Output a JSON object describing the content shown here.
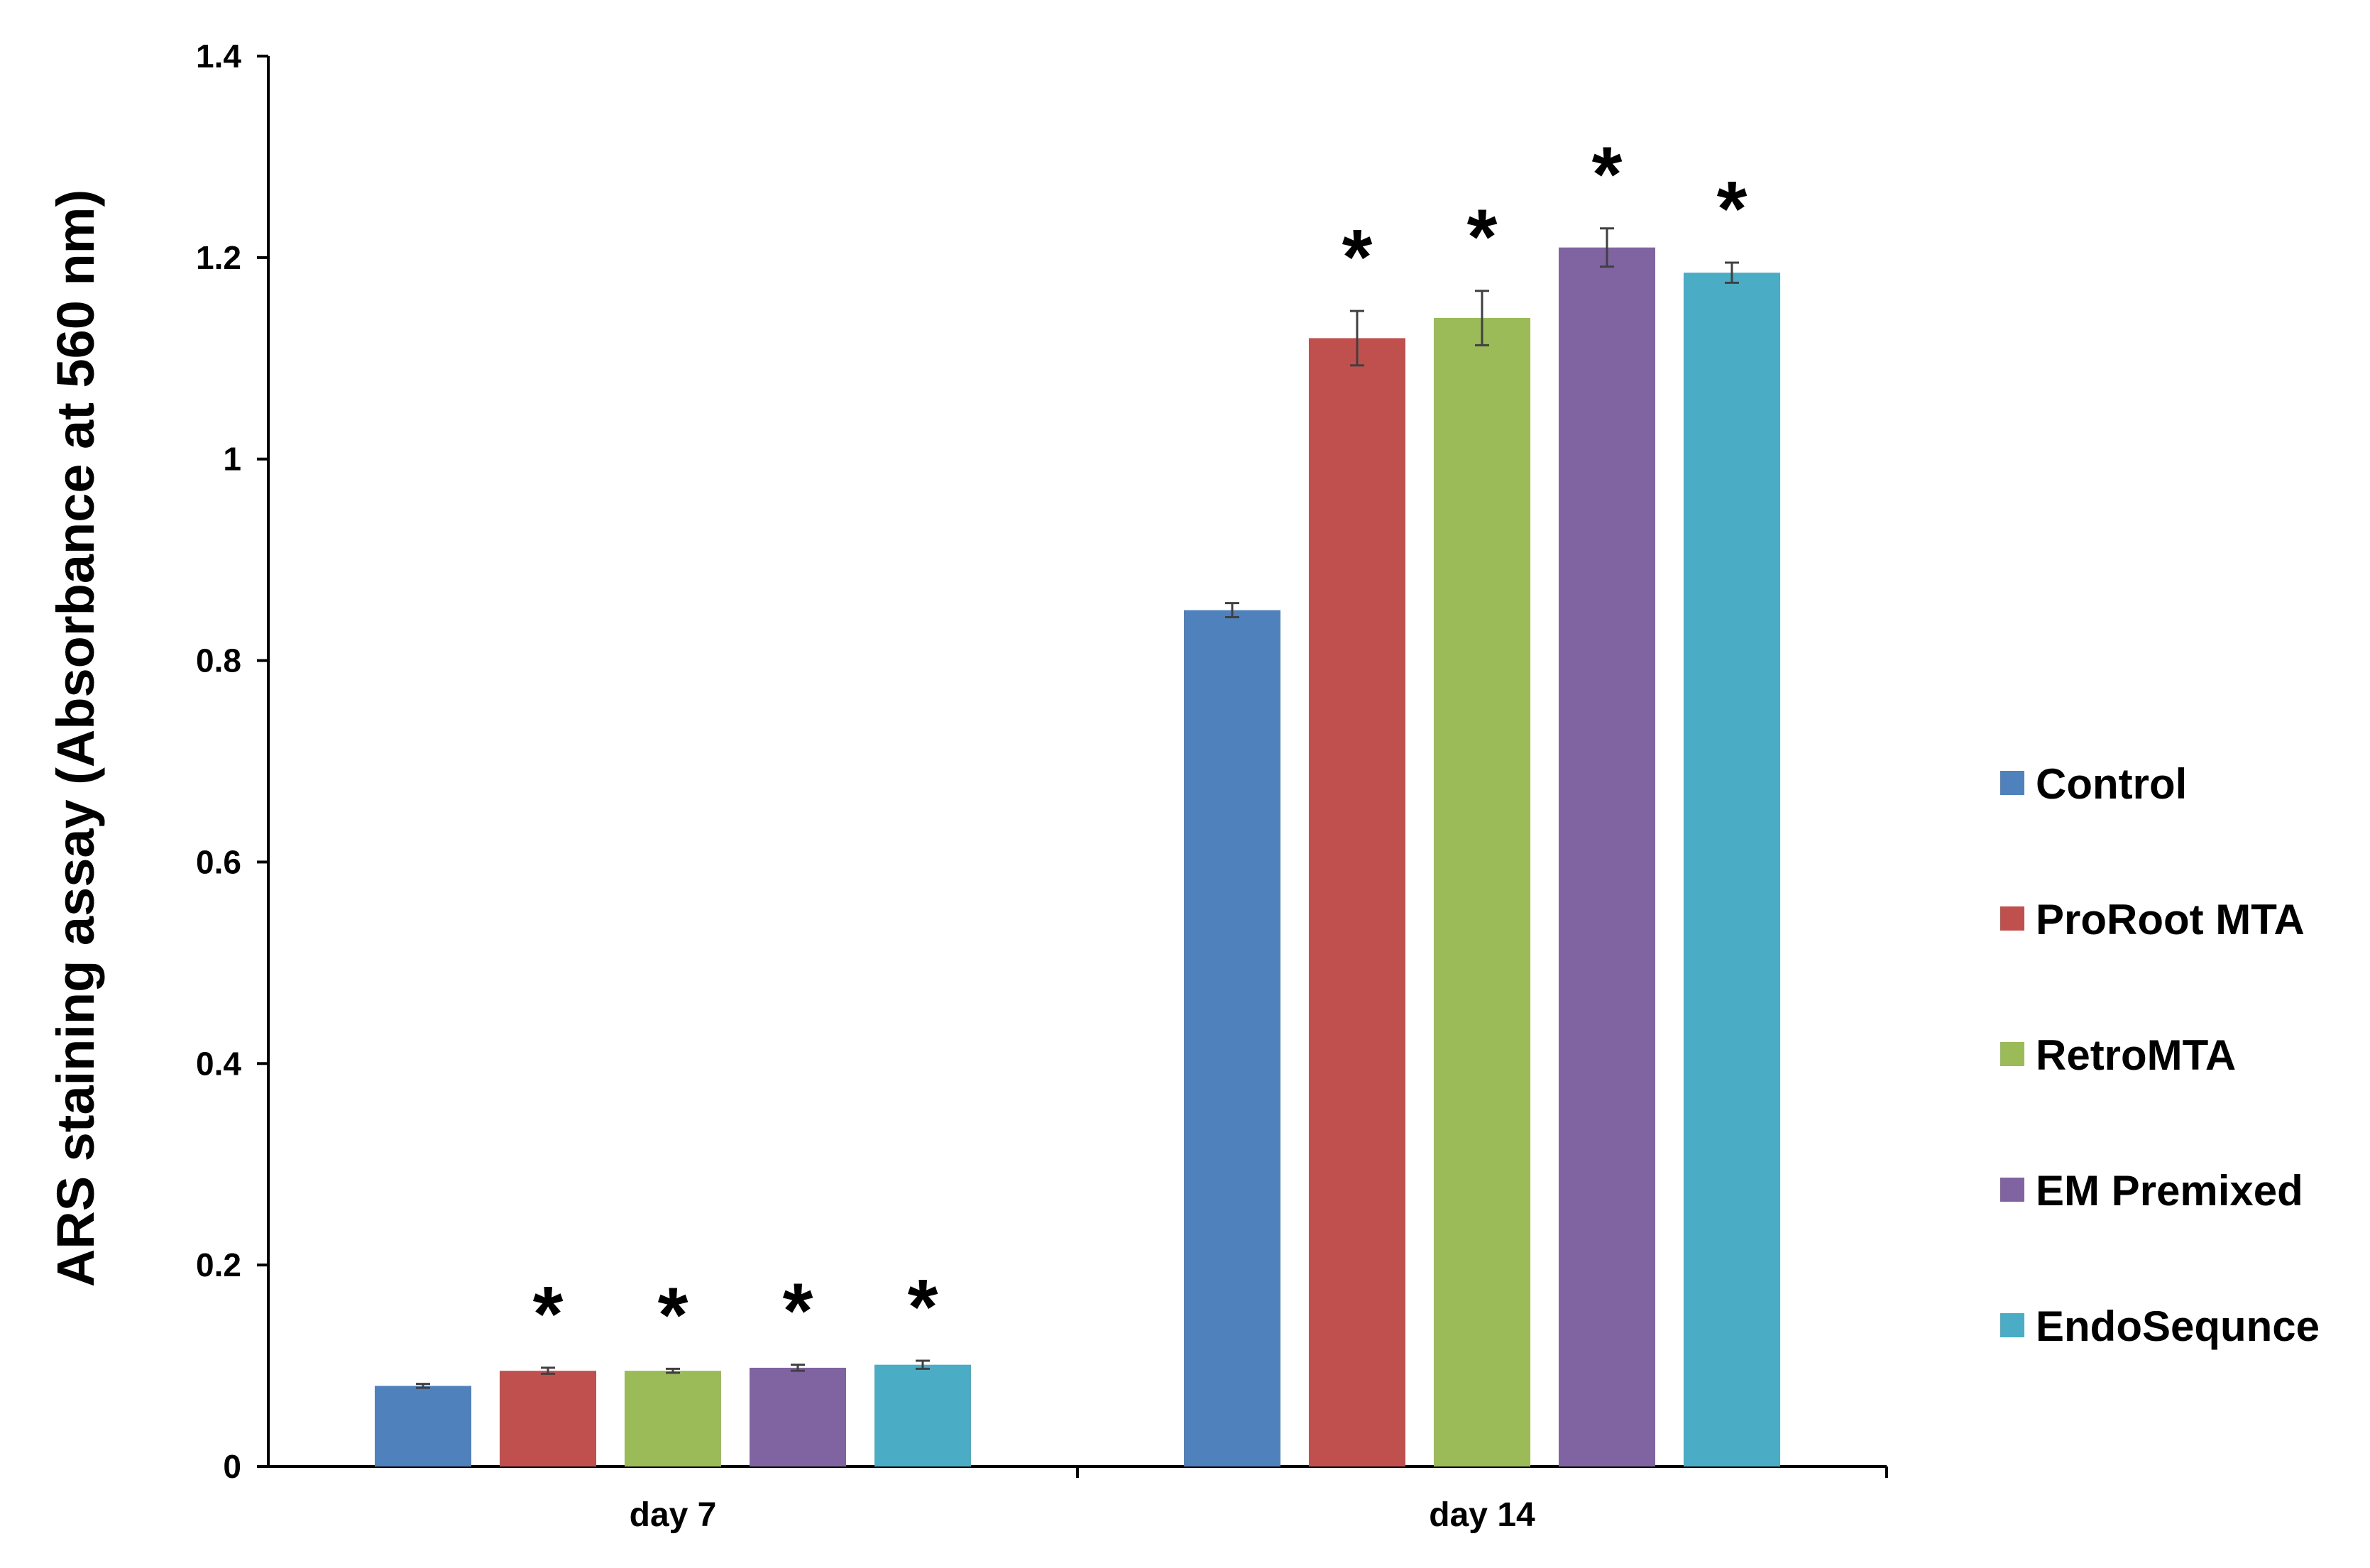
{
  "chart_data": {
    "type": "bar",
    "title": "",
    "xlabel": "",
    "ylabel": "ARS staining assay (Absorbance at 560 nm)",
    "ylim": [
      0,
      1.4
    ],
    "yticks": [
      0,
      0.2,
      0.4,
      0.6,
      0.8,
      1,
      1.2,
      1.4
    ],
    "ytick_labels": [
      "0",
      "0.2",
      "0.4",
      "0.6",
      "0.8",
      "1",
      "1.2",
      "1.4"
    ],
    "categories": [
      "day 7",
      "day 14"
    ],
    "grid": false,
    "legend_position": "right",
    "significance_marker": "*",
    "series": [
      {
        "name": "Control",
        "color": "#4F81BD",
        "values": [
          0.08,
          0.85
        ],
        "errors": [
          0.002,
          0.007
        ],
        "significant": [
          false,
          false
        ]
      },
      {
        "name": "ProRoot MTA",
        "color": "#C0504D",
        "values": [
          0.095,
          1.12
        ],
        "errors": [
          0.003,
          0.027
        ],
        "significant": [
          true,
          true
        ]
      },
      {
        "name": "RetroMTA",
        "color": "#9BBB59",
        "values": [
          0.095,
          1.14
        ],
        "errors": [
          0.002,
          0.027
        ],
        "significant": [
          true,
          true
        ]
      },
      {
        "name": "EM Premixed",
        "color": "#8064A2",
        "values": [
          0.098,
          1.21
        ],
        "errors": [
          0.003,
          0.019
        ],
        "significant": [
          true,
          true
        ]
      },
      {
        "name": "EndoSequnce",
        "color": "#4BACC6",
        "values": [
          0.101,
          1.185
        ],
        "errors": [
          0.004,
          0.01
        ],
        "significant": [
          true,
          true
        ]
      }
    ]
  }
}
